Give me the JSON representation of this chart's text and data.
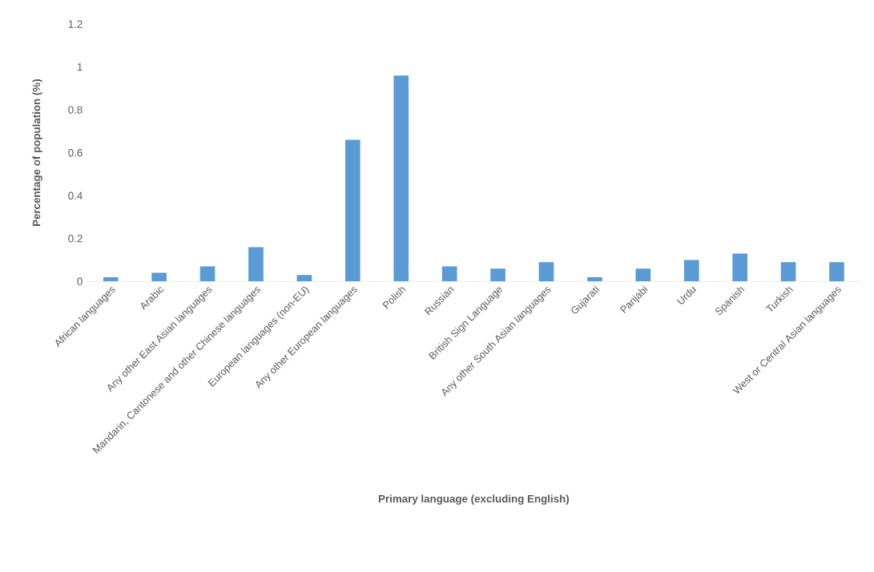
{
  "chart_data": {
    "type": "bar",
    "xlabel": "Primary language (excluding English)",
    "ylabel": "Percentage of population (%)",
    "categories": [
      "African languages",
      "Arabic",
      "Any other East Asian languages",
      "Mandarin, Cantonese and other Chinese languages",
      "European languages (non-EU)",
      "Any other European languages",
      "Polish",
      "Russian",
      "British Sign Language",
      "Any other South Asian languages",
      "Gujarati",
      "Panjabi",
      "Urdu",
      "Spanish",
      "Turkish",
      "West or Central Asian languages"
    ],
    "values": [
      0.02,
      0.04,
      0.07,
      0.16,
      0.03,
      0.66,
      0.96,
      0.07,
      0.06,
      0.09,
      0.02,
      0.06,
      0.1,
      0.13,
      0.09,
      0.09
    ],
    "color": "#5b9bd5",
    "ylim": [
      0,
      1.2
    ],
    "yticks": [
      0,
      0.2,
      0.4,
      0.6,
      0.8,
      1,
      1.2
    ]
  }
}
